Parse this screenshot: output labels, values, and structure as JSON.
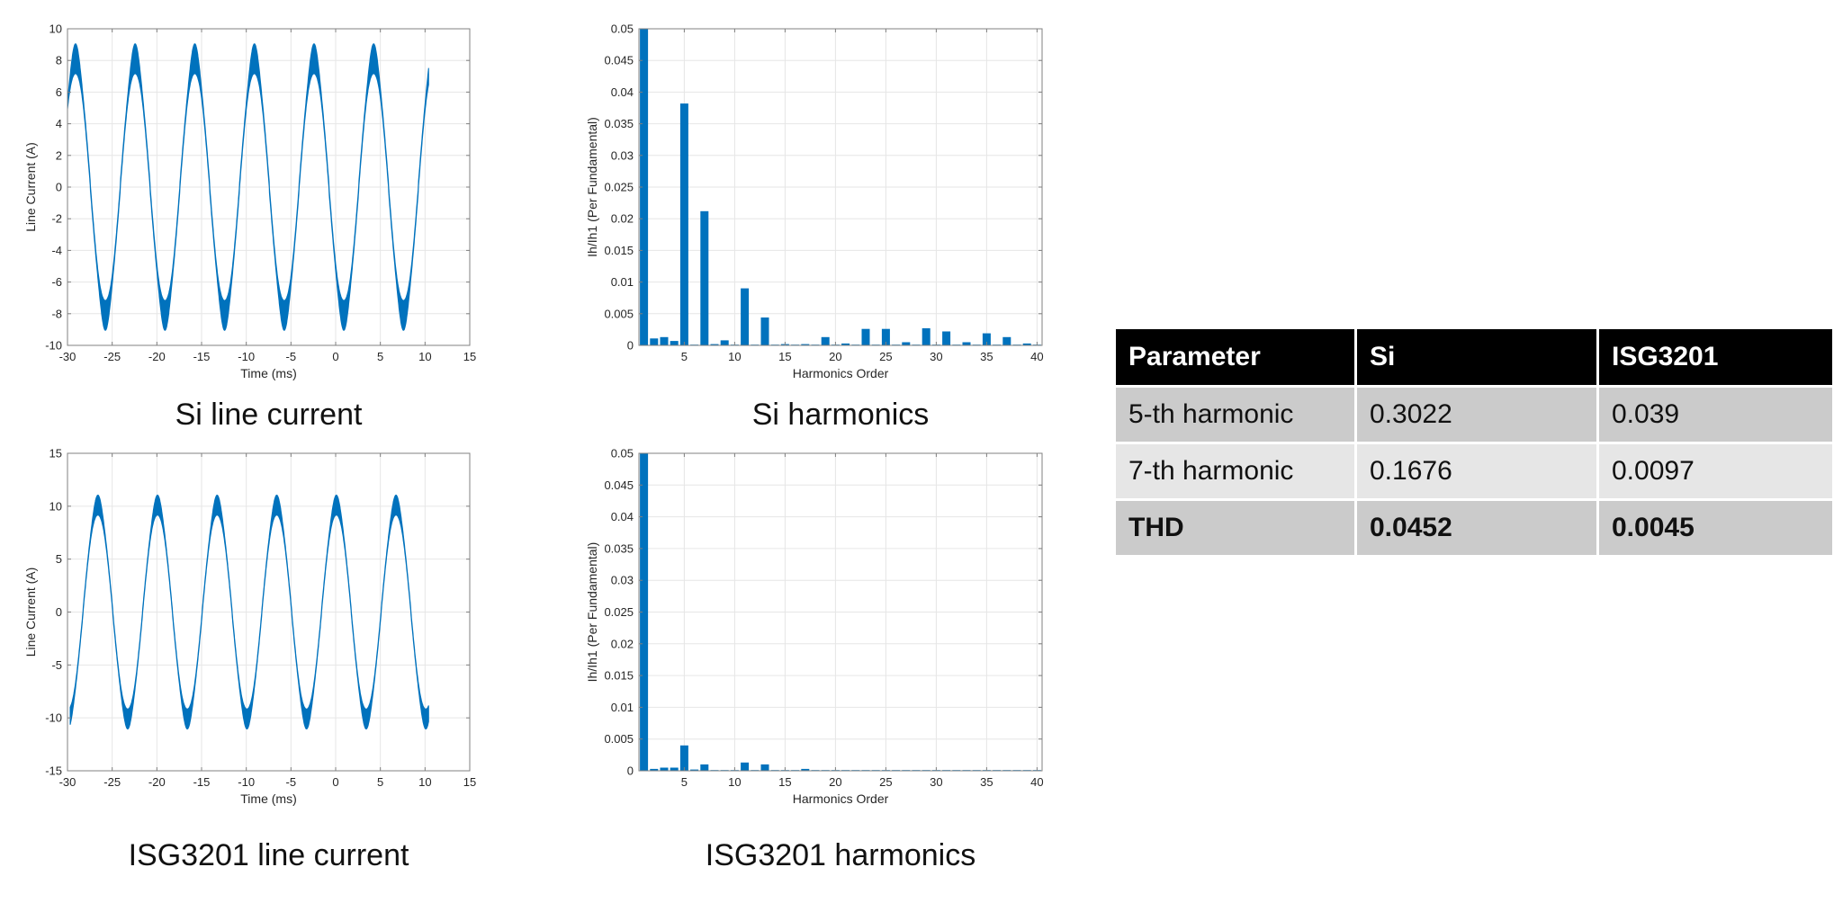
{
  "colors": {
    "series": "#0072BD",
    "grid": "#e6e6e6",
    "axis": "#262626",
    "header_bg": "#000000",
    "row_dark": "#cbcbcb",
    "row_light": "#e6e6e6"
  },
  "captions": {
    "si_line_current": "Si line current",
    "si_harmonics": "Si harmonics",
    "isg_line_current": "ISG3201 line current",
    "isg_harmonics": "ISG3201 harmonics"
  },
  "table": {
    "headers": [
      "Parameter",
      "Si",
      "ISG3201"
    ],
    "rows": [
      [
        "5-th harmonic",
        "0.3022",
        "0.039"
      ],
      [
        "7-th harmonic",
        "0.1676",
        "0.0097"
      ],
      [
        "THD",
        "0.0452",
        "0.0045"
      ]
    ]
  },
  "chart_data": [
    {
      "id": "si_line_current",
      "type": "line",
      "title": "Si line current",
      "xlabel": "Time (ms)",
      "ylabel": "Line Current (A)",
      "xlim": [
        -30,
        15
      ],
      "ylim": [
        -10,
        10
      ],
      "xticks": [
        -30,
        -25,
        -20,
        -15,
        -10,
        -5,
        0,
        5,
        10,
        15
      ],
      "yticks": [
        -10,
        -8,
        -6,
        -4,
        -2,
        0,
        2,
        4,
        6,
        8,
        10
      ],
      "grid": true,
      "series": [
        {
          "name": "Si line current",
          "amplitude": 7.6,
          "ripple": 1.2,
          "period_ms": 6.67,
          "x_start": -30,
          "x_end": 10.4,
          "peak_x": [
            -29.1,
            -22.4,
            -15.7,
            -9.1,
            -2.4,
            4.3
          ],
          "peak_y": 8.8,
          "trough_x": [
            -25.7,
            -19.0,
            -12.4,
            -5.7,
            1.0,
            7.6
          ],
          "trough_y": -8.8
        }
      ]
    },
    {
      "id": "si_harmonics",
      "type": "bar",
      "title": "Si harmonics",
      "xlabel": "Harmonics Order",
      "ylabel": "Ih/Ih1 (Per Fundamental)",
      "xlim": [
        0.5,
        40.5
      ],
      "ylim": [
        0,
        0.05
      ],
      "xticks": [
        5,
        10,
        15,
        20,
        25,
        30,
        35,
        40
      ],
      "yticks": [
        0,
        0.005,
        0.01,
        0.015,
        0.02,
        0.025,
        0.03,
        0.035,
        0.04,
        0.045,
        0.05
      ],
      "grid": true,
      "categories": [
        1,
        2,
        3,
        4,
        5,
        6,
        7,
        8,
        9,
        10,
        11,
        12,
        13,
        14,
        15,
        16,
        17,
        18,
        19,
        20,
        21,
        22,
        23,
        24,
        25,
        26,
        27,
        28,
        29,
        30,
        31,
        32,
        33,
        34,
        35,
        36,
        37,
        38,
        39,
        40
      ],
      "values": [
        1.0,
        0.0011,
        0.0013,
        0.0007,
        0.0382,
        0.0001,
        0.0212,
        0.0002,
        0.0008,
        0.0001,
        0.009,
        0.0001,
        0.0044,
        0.0001,
        0.0002,
        0.0001,
        0.0002,
        0.0,
        0.0013,
        0.0,
        0.0003,
        0.0,
        0.0026,
        0.0,
        0.0026,
        0.0001,
        0.0005,
        0.0,
        0.0027,
        0.0001,
        0.0022,
        0.0001,
        0.0005,
        0.0001,
        0.0019,
        0.0,
        0.0013,
        0.0001,
        0.0003,
        0.0
      ]
    },
    {
      "id": "isg_line_current",
      "type": "line",
      "title": "ISG3201 line current",
      "xlabel": "Time (ms)",
      "ylabel": "Line Current (A)",
      "xlim": [
        -30,
        15
      ],
      "ylim": [
        -15,
        15
      ],
      "xticks": [
        -30,
        -25,
        -20,
        -15,
        -10,
        -5,
        0,
        5,
        10,
        15
      ],
      "yticks": [
        -15,
        -10,
        -5,
        0,
        5,
        10,
        15
      ],
      "grid": true,
      "series": [
        {
          "name": "ISG3201 line current",
          "amplitude": 9.6,
          "ripple": 1.2,
          "period_ms": 6.67,
          "x_start": -29.7,
          "x_end": 10.4,
          "peak_x": [
            -26.6,
            -20.0,
            -13.3,
            -6.7,
            0.0,
            6.7
          ],
          "peak_y": 10.8,
          "trough_x": [
            -23.3,
            -16.6,
            -10.0,
            -3.3,
            3.4,
            10.1
          ],
          "trough_y": -10.8
        }
      ]
    },
    {
      "id": "isg_harmonics",
      "type": "bar",
      "title": "ISG3201 harmonics",
      "xlabel": "Harmonics Order",
      "ylabel": "Ih/Ih1 (Per Fundamental)",
      "xlim": [
        0.5,
        40.5
      ],
      "ylim": [
        0,
        0.05
      ],
      "xticks": [
        5,
        10,
        15,
        20,
        25,
        30,
        35,
        40
      ],
      "yticks": [
        0,
        0.005,
        0.01,
        0.015,
        0.02,
        0.025,
        0.03,
        0.035,
        0.04,
        0.045,
        0.05
      ],
      "grid": true,
      "categories": [
        1,
        2,
        3,
        4,
        5,
        6,
        7,
        8,
        9,
        10,
        11,
        12,
        13,
        14,
        15,
        16,
        17,
        18,
        19,
        20,
        21,
        22,
        23,
        24,
        25,
        26,
        27,
        28,
        29,
        30,
        31,
        32,
        33,
        34,
        35,
        36,
        37,
        38,
        39,
        40
      ],
      "values": [
        1.0,
        0.0003,
        0.0005,
        0.0005,
        0.004,
        0.0002,
        0.001,
        0.0001,
        0.0001,
        0.0,
        0.0013,
        0.0001,
        0.001,
        0.0001,
        0.0001,
        0.0,
        0.0003,
        0.0,
        0.0001,
        0.0,
        0.0001,
        0.0,
        0.0001,
        0.0,
        0.0001,
        0.0,
        0.0,
        0.0,
        0.0001,
        0.0,
        0.0001,
        0.0,
        0.0,
        0.0,
        0.0001,
        0.0,
        0.0,
        0.0,
        0.0,
        0.0
      ]
    }
  ]
}
